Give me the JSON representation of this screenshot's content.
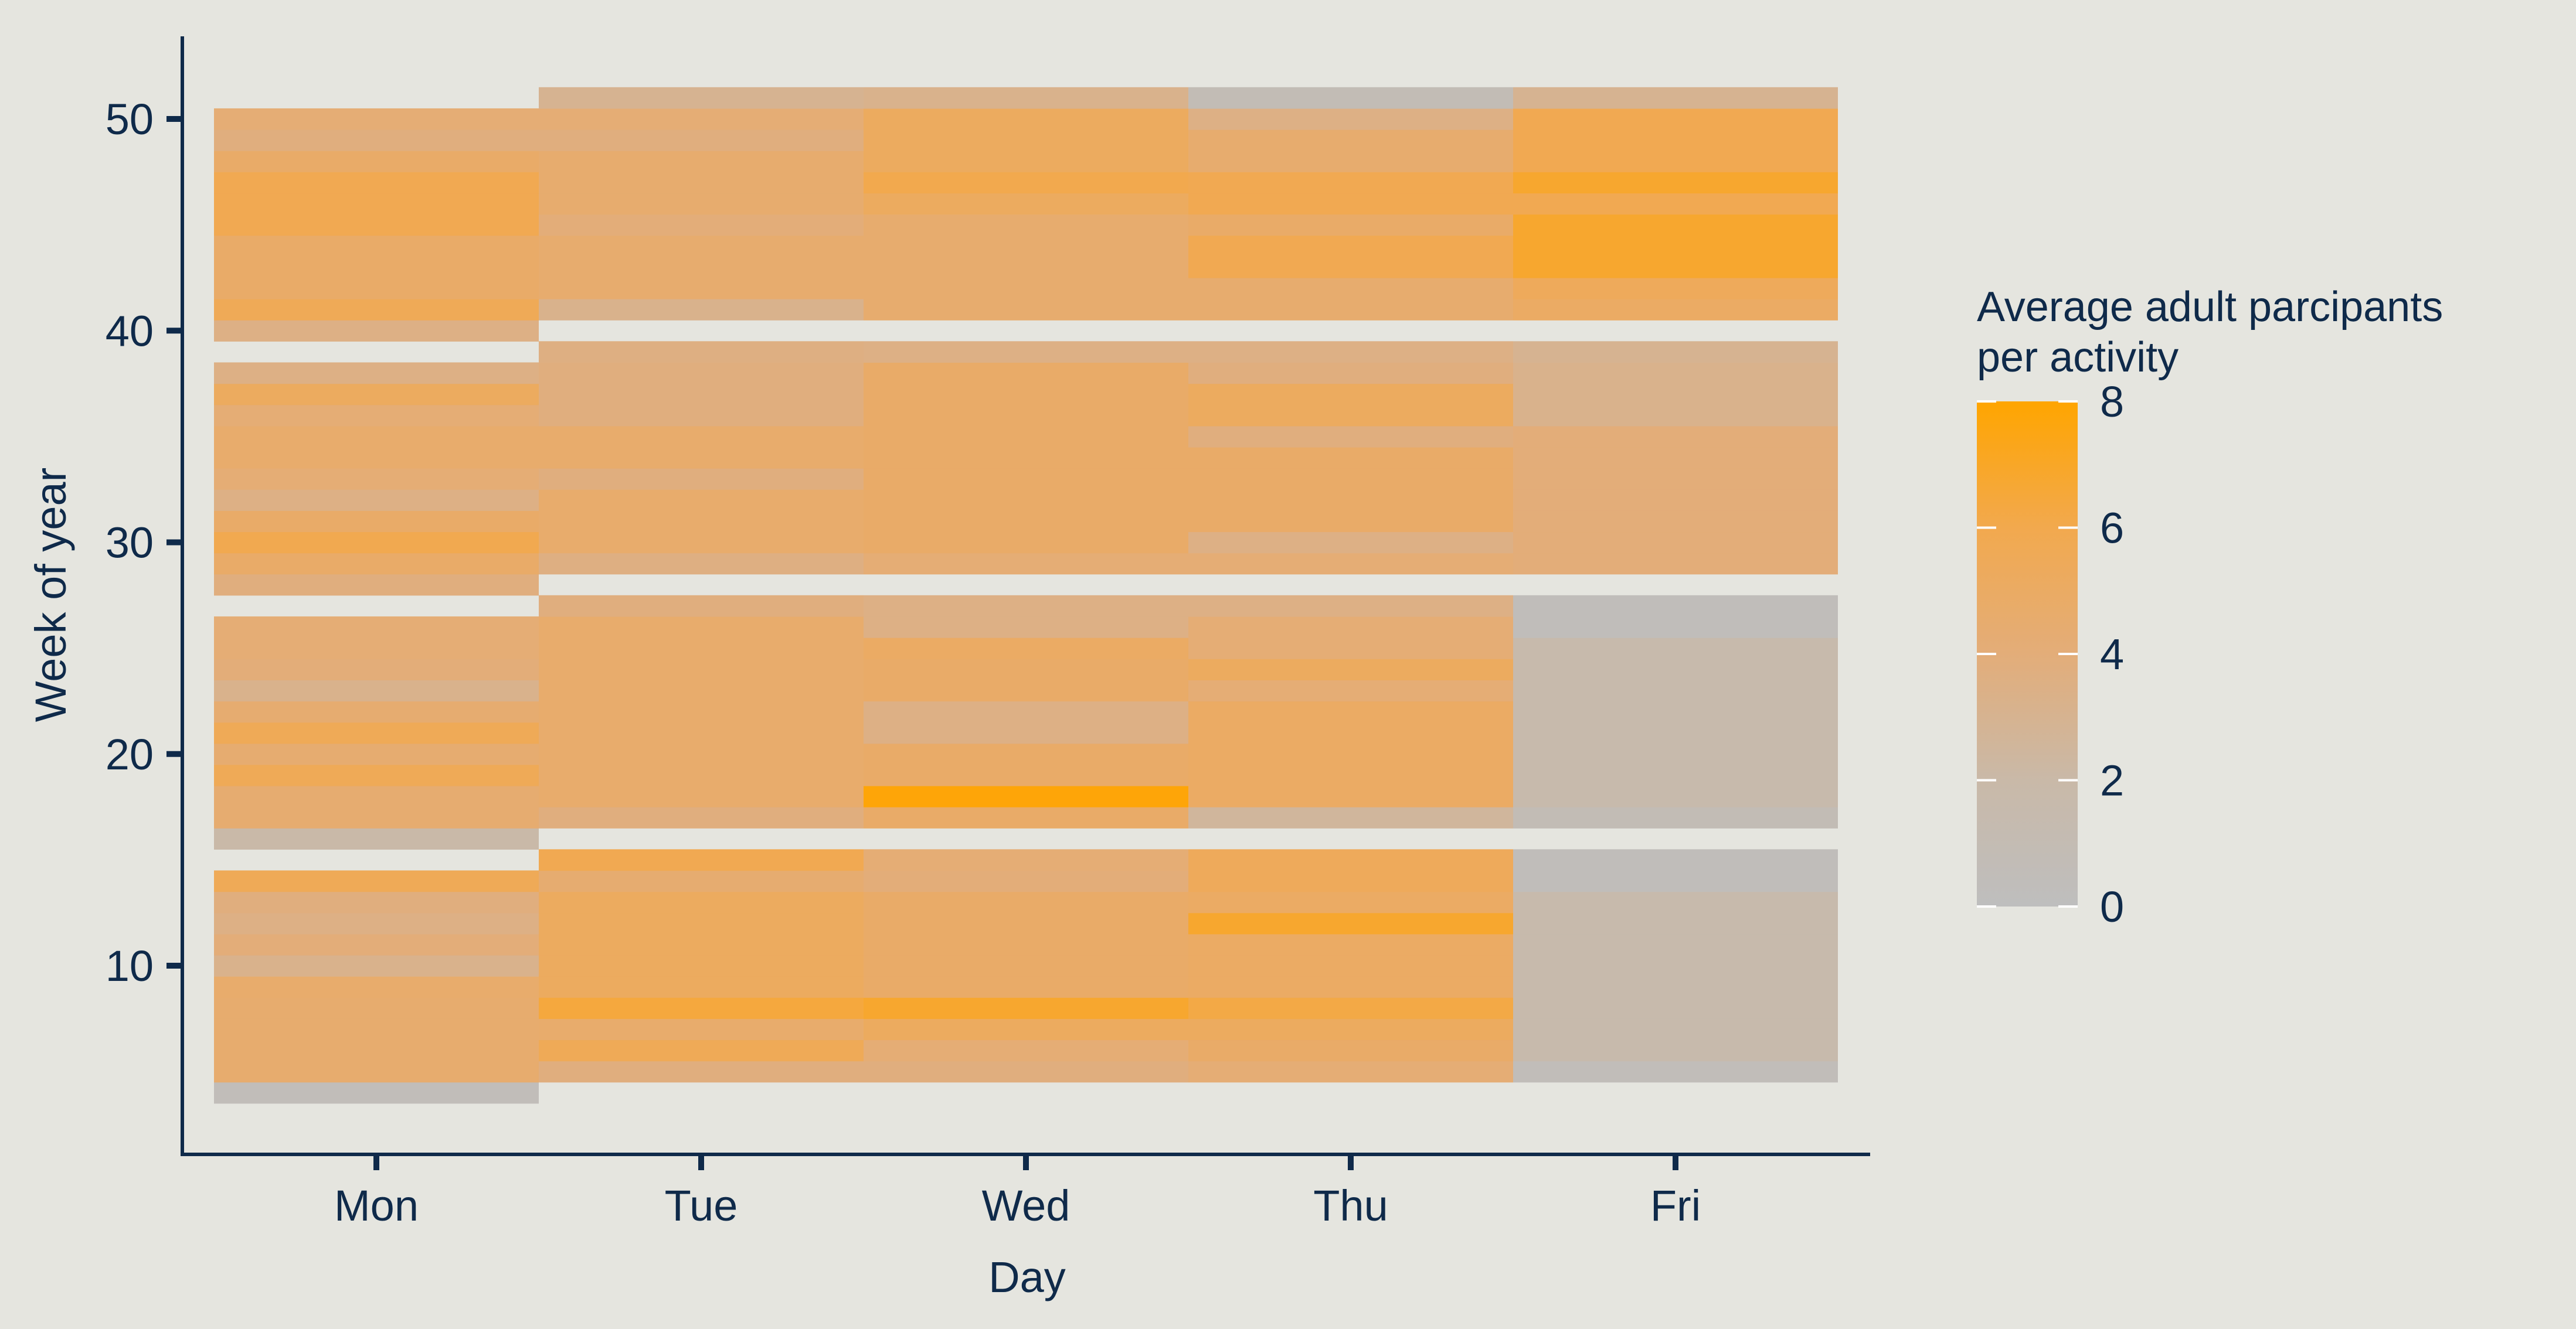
{
  "chart_data": {
    "type": "heatmap",
    "xlabel": "Day",
    "ylabel": "Week of year",
    "x_categories": [
      "Mon",
      "Tue",
      "Wed",
      "Thu",
      "Fri"
    ],
    "y_ticks": [
      10,
      20,
      30,
      40,
      50
    ],
    "ylim": [
      1.5,
      54
    ],
    "legend": {
      "title_line1": "Average adult parcipants",
      "title_line2": "per activity",
      "min": 0,
      "max": 8,
      "ticks": [
        0,
        2,
        4,
        6,
        8
      ],
      "low_color": "#bebebe",
      "high_color": "#ffa500",
      "placement": "right"
    },
    "colors": {
      "background": "#e5e5df",
      "text": "#0f2a4a"
    },
    "grid": false,
    "cells": [
      {
        "day": "Mon",
        "weeks": [
          4,
          5,
          6,
          7,
          8,
          9,
          10,
          11,
          12,
          13,
          14,
          16,
          17,
          18,
          19,
          20,
          21,
          22,
          23,
          24,
          25,
          26,
          28,
          29,
          30,
          31,
          32,
          33,
          34,
          35,
          36,
          37,
          38,
          40,
          41,
          42,
          43,
          44,
          45,
          46,
          47,
          48,
          49,
          50
        ],
        "values": [
          0.5,
          4.5,
          4.5,
          4.5,
          4.5,
          4.6,
          3.2,
          4,
          3.5,
          3.8,
          5.6,
          2,
          4.4,
          4.4,
          5.6,
          4.4,
          5.6,
          4.4,
          3.2,
          4,
          4.2,
          4.2,
          3.8,
          4.8,
          5.9,
          4.8,
          3.5,
          4.2,
          4.6,
          4.6,
          4.2,
          5.2,
          3.5,
          3.5,
          5.6,
          4.8,
          4.8,
          4.8,
          5.8,
          5.8,
          5.8,
          4.8,
          3.8,
          4.2
        ]
      },
      {
        "day": "Tue",
        "weeks": [
          5,
          6,
          7,
          8,
          9,
          10,
          11,
          12,
          13,
          14,
          15,
          17,
          18,
          19,
          20,
          21,
          22,
          23,
          24,
          25,
          26,
          27,
          29,
          30,
          31,
          32,
          33,
          34,
          35,
          36,
          37,
          38,
          39,
          41,
          42,
          43,
          44,
          45,
          46,
          47,
          48,
          49,
          50,
          51
        ],
        "values": [
          3.8,
          5.6,
          4.6,
          6.4,
          5.2,
          5.2,
          5.2,
          5.2,
          5.2,
          4.4,
          5.8,
          3.8,
          4.6,
          4.6,
          4.6,
          4.6,
          4.6,
          4.6,
          4.6,
          4.6,
          4.6,
          3.8,
          3.6,
          4.6,
          4.6,
          4.6,
          3.8,
          4.6,
          4.6,
          3.8,
          3.8,
          3.8,
          3.6,
          3.2,
          4.5,
          4.5,
          4.5,
          4,
          4.5,
          4.5,
          4.5,
          3.8,
          4.2,
          3
        ]
      },
      {
        "day": "Wed",
        "weeks": [
          5,
          6,
          7,
          8,
          9,
          10,
          11,
          12,
          13,
          14,
          15,
          17,
          18,
          19,
          20,
          21,
          22,
          23,
          24,
          25,
          26,
          27,
          29,
          30,
          31,
          32,
          33,
          34,
          35,
          36,
          37,
          38,
          39,
          41,
          42,
          43,
          44,
          45,
          46,
          47,
          48,
          49,
          50,
          51
        ],
        "values": [
          3.8,
          4.2,
          5.2,
          6.8,
          4.8,
          4.8,
          4.8,
          4.8,
          4.8,
          4,
          4.2,
          4.8,
          7.8,
          4.8,
          4.8,
          3.5,
          3.5,
          4.8,
          4.8,
          5,
          3.5,
          3.5,
          4.2,
          4.8,
          4.8,
          4.8,
          4.8,
          4.8,
          4.8,
          4.8,
          4.8,
          4.8,
          3.5,
          4.5,
          4.5,
          4.5,
          4.5,
          4.5,
          5.2,
          6,
          5.2,
          5.2,
          5.2,
          3.2
        ]
      },
      {
        "day": "Thu",
        "weeks": [
          5,
          6,
          7,
          8,
          9,
          10,
          11,
          12,
          13,
          14,
          15,
          17,
          18,
          19,
          20,
          21,
          22,
          23,
          24,
          25,
          26,
          27,
          29,
          30,
          31,
          32,
          33,
          34,
          35,
          36,
          37,
          38,
          39,
          41,
          42,
          43,
          44,
          45,
          46,
          47,
          48,
          49,
          50,
          51
        ],
        "values": [
          4.2,
          4.8,
          5.2,
          6.2,
          5,
          5,
          5,
          6.8,
          5,
          5.4,
          5.4,
          2.5,
          5,
          5,
          5,
          5,
          5,
          4.2,
          5.2,
          4.2,
          4.2,
          3.5,
          4.2,
          3.5,
          4.8,
          4.8,
          4.8,
          4.8,
          3.8,
          5.2,
          5.2,
          3.8,
          3.5,
          4.5,
          4.5,
          5.8,
          5.8,
          4.8,
          5.8,
          5.8,
          4.5,
          4.5,
          3.5,
          0.8
        ]
      },
      {
        "day": "Fri",
        "weeks": [
          5,
          6,
          7,
          8,
          9,
          10,
          11,
          12,
          13,
          14,
          15,
          17,
          18,
          19,
          20,
          21,
          22,
          23,
          24,
          25,
          26,
          27,
          29,
          30,
          31,
          32,
          33,
          34,
          35,
          36,
          37,
          38,
          39,
          41,
          42,
          43,
          44,
          45,
          46,
          47,
          48,
          49,
          50,
          51
        ],
        "values": [
          0.5,
          1.6,
          1.6,
          1.6,
          1.6,
          1.6,
          1.6,
          1.6,
          1.6,
          0.4,
          0.4,
          0.8,
          1.6,
          1.6,
          1.6,
          1.6,
          1.6,
          1.6,
          1.6,
          1.6,
          0.4,
          0.4,
          4,
          4,
          4,
          4,
          4,
          4,
          4,
          3.2,
          3.2,
          3.2,
          3,
          5,
          5.4,
          6.8,
          6.8,
          6.8,
          5.8,
          6.8,
          5.8,
          5.8,
          5.8,
          3
        ]
      }
    ]
  }
}
